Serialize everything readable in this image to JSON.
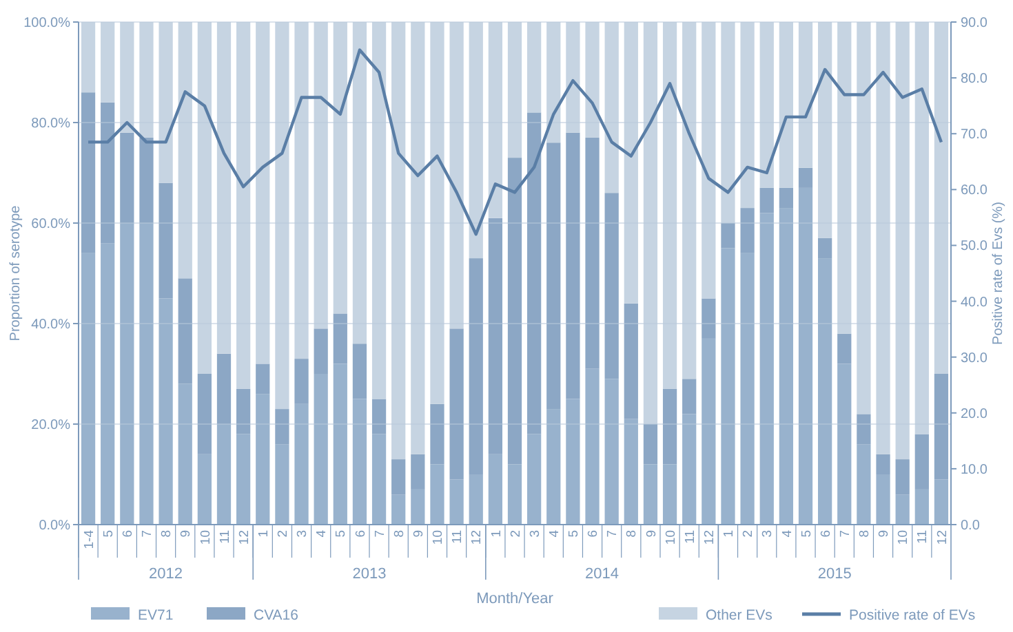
{
  "chart_data": {
    "type": "bar",
    "stacked": true,
    "xlabel": "Month/Year",
    "ylabel": "Proportion of serotype",
    "y2label": "Positive rate of Evs (%)",
    "categories": [
      "1-4",
      "5",
      "6",
      "7",
      "8",
      "9",
      "10",
      "11",
      "12",
      "1",
      "2",
      "3",
      "4",
      "5",
      "6",
      "7",
      "8",
      "9",
      "10",
      "11",
      "12",
      "1",
      "2",
      "3",
      "4",
      "5",
      "6",
      "7",
      "8",
      "9",
      "10",
      "11",
      "12",
      "1",
      "2",
      "3",
      "4",
      "5",
      "6",
      "7",
      "8",
      "9",
      "10",
      "11",
      "12"
    ],
    "annotations": [
      "2012",
      "2013",
      "2014",
      "2015"
    ],
    "ylim": [
      0,
      100
    ],
    "yticks": [
      {
        "value": 0,
        "label": "0.0%"
      },
      {
        "value": 20,
        "label": "20.0%"
      },
      {
        "value": 40,
        "label": "40.0%"
      },
      {
        "value": 60,
        "label": "60.0%"
      },
      {
        "value": 80,
        "label": "80.0%"
      },
      {
        "value": 100,
        "label": "100.0%"
      }
    ],
    "y2lim": [
      0,
      90
    ],
    "y2ticks": [
      {
        "value": 0,
        "label": "0.0"
      },
      {
        "value": 10,
        "label": "10.0"
      },
      {
        "value": 20,
        "label": "20.0"
      },
      {
        "value": 30,
        "label": "30.0"
      },
      {
        "value": 40,
        "label": "40.0"
      },
      {
        "value": 50,
        "label": "50.0"
      },
      {
        "value": 60,
        "label": "60.0"
      },
      {
        "value": 70,
        "label": "70.0"
      },
      {
        "value": 80,
        "label": "80.0"
      },
      {
        "value": 90,
        "label": "90.0"
      }
    ],
    "grid": "y",
    "legend": "bottom",
    "series": [
      {
        "name": "EV71",
        "color": "#98b2cd",
        "values": [
          54,
          56,
          60,
          60,
          45,
          28,
          14,
          20,
          18,
          26,
          16,
          24,
          30,
          32,
          25,
          18,
          6,
          7,
          12,
          9,
          10,
          14,
          12,
          18,
          23,
          25,
          31,
          29,
          21,
          12,
          12,
          22,
          37,
          55,
          54,
          62,
          63,
          67,
          53,
          32,
          16,
          10,
          6,
          7,
          9
        ]
      },
      {
        "name": "CVA16",
        "color": "#8ca7c5",
        "values": [
          32,
          28,
          18,
          17,
          23,
          21,
          16,
          14,
          9,
          6,
          7,
          9,
          9,
          10,
          11,
          7,
          7,
          7,
          12,
          30,
          43,
          47,
          61,
          64,
          53,
          53,
          46,
          37,
          23,
          8,
          15,
          7,
          8,
          5,
          9,
          5,
          4,
          4,
          4,
          6,
          6,
          4,
          7,
          11,
          21
        ]
      },
      {
        "name": "Other EVs",
        "color": "#c6d4e2",
        "values": [
          14,
          16,
          22,
          23,
          32,
          51,
          70,
          66,
          73,
          68,
          77,
          67,
          61,
          58,
          64,
          75,
          87,
          86,
          76,
          61,
          47,
          39,
          27,
          18,
          24,
          22,
          23,
          34,
          56,
          80,
          73,
          71,
          55,
          40,
          37,
          33,
          33,
          29,
          43,
          62,
          78,
          86,
          87,
          82,
          70
        ]
      },
      {
        "name": "Positive rate of EVs",
        "type": "line",
        "axis": "y2",
        "color": "#5a7ea6",
        "values": [
          68.5,
          68.5,
          72,
          68.5,
          68.5,
          77.5,
          75,
          66.5,
          60.5,
          64,
          66.5,
          76.5,
          76.5,
          73.5,
          85,
          81,
          66.5,
          62.5,
          66,
          59.5,
          52,
          61,
          59.5,
          64,
          73.5,
          79.5,
          75.5,
          68.5,
          66,
          72,
          79,
          70,
          62,
          59.5,
          64,
          63,
          73,
          73,
          81.5,
          77,
          77,
          81,
          76.5,
          78,
          68.5
        ]
      }
    ]
  }
}
